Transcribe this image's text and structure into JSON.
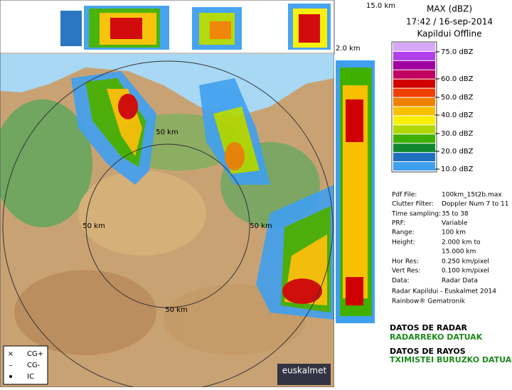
{
  "header": {
    "title": "MAX (dBZ)",
    "time": "17:42 / 16-sep-2014",
    "status": "Kapildui Offline"
  },
  "scale": {
    "labels": [
      "75.0 dBZ",
      "60.0 dBZ",
      "50.0 dBZ",
      "40.0 dBZ",
      "30.0 dBZ",
      "20.0 dBZ",
      "10.0 dBZ"
    ],
    "colors": [
      "#d8a8f8",
      "#b040e8",
      "#a000a0",
      "#c00060",
      "#d00000",
      "#f04000",
      "#f08000",
      "#f8c000",
      "#f8f000",
      "#b0d800",
      "#40b000",
      "#108830",
      "#2070c0",
      "#40a0f0"
    ]
  },
  "info": [
    {
      "key": "Pdf File:",
      "value": "100km_15t2b.max"
    },
    {
      "key": "Clutter Filter:",
      "value": "Doppler Num 7 to 11"
    },
    {
      "key": "Time sampling:",
      "value": "35 to 38"
    },
    {
      "key": "PRF:",
      "value": "Variable"
    },
    {
      "key": "Range:",
      "value": "100 km"
    },
    {
      "key": "Height:",
      "value": "2.000 km to"
    },
    {
      "key": "",
      "value": "15.000 km"
    },
    {
      "key": "Hor Res:",
      "value": "0.250 km/pixel"
    },
    {
      "key": "Vert Res:",
      "value": "0.100 km/pixel"
    },
    {
      "key": "Data:",
      "value": "Radar Data"
    }
  ],
  "credits": [
    "Radar Kapildui - Euskalmet 2014",
    "Rainbow® Gematronik"
  ],
  "links": [
    "DATOS DE RADAR",
    "RADARREKO DATUAK",
    "DATOS DE RAYOS",
    "TXIMISTEI BURUZKO DATUAK"
  ],
  "map": {
    "top_height": "15.0 km",
    "bottom_height": "2.0 km",
    "ring_labels": [
      "50 km",
      "50 km",
      "50 km",
      "50 km"
    ],
    "logo": "euskalmet"
  },
  "legend": [
    "CG+",
    "CG-",
    "IC"
  ]
}
